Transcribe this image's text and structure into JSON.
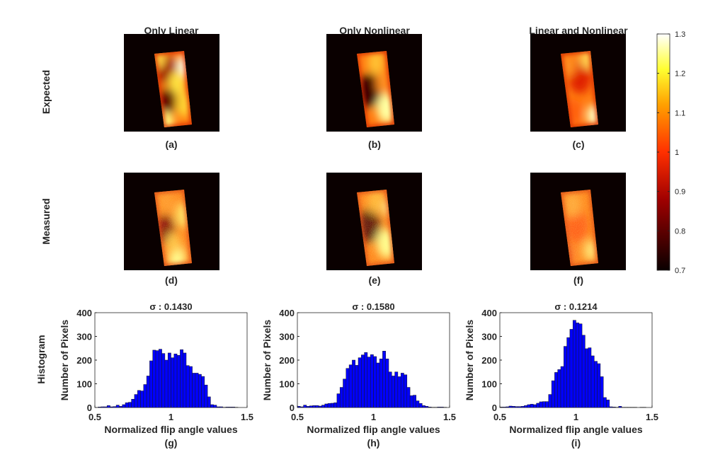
{
  "columns": [
    "Only Linear",
    "Only Nonlinear",
    "Linear and Nonlinear"
  ],
  "rows": [
    "Expected",
    "Measured",
    "Histogram"
  ],
  "panel_labels": [
    "(a)",
    "(b)",
    "(c)",
    "(d)",
    "(e)",
    "(f)",
    "(g)",
    "(h)",
    "(i)"
  ],
  "colorbar": {
    "colormap": "hot",
    "range": [
      0.7,
      1.3
    ],
    "ticks": [
      "0.7",
      "0.8",
      "0.9",
      "1",
      "1.1",
      "1.2",
      "1.3"
    ]
  },
  "chart_data": [
    {
      "type": "bar",
      "panel": "(g)",
      "title": "σ : 0.1430",
      "xlabel": "Normalized flip angle values",
      "ylabel": "Number of Pixels",
      "xlim": [
        0.5,
        1.5
      ],
      "ylim": [
        0,
        400
      ],
      "xticks": [
        "0.5",
        "1",
        "1.5"
      ],
      "yticks": [
        "0",
        "100",
        "200",
        "300",
        "400"
      ],
      "bin_start": 0.5,
      "bin_width": 0.02,
      "color": "#0000ff",
      "values": [
        0,
        2,
        3,
        3,
        8,
        3,
        4,
        10,
        5,
        12,
        20,
        22,
        35,
        55,
        72,
        70,
        97,
        133,
        197,
        242,
        240,
        246,
        228,
        200,
        230,
        210,
        226,
        220,
        244,
        230,
        177,
        173,
        145,
        145,
        140,
        131,
        95,
        45,
        12,
        10,
        3,
        3,
        1,
        2,
        2,
        2,
        1,
        0,
        0,
        0
      ]
    },
    {
      "type": "bar",
      "panel": "(h)",
      "title": "σ : 0.1580",
      "xlabel": "Normalized flip angle values",
      "ylabel": "Number of Pixels",
      "xlim": [
        0.5,
        1.5
      ],
      "ylim": [
        0,
        400
      ],
      "xticks": [
        "0.5",
        "1",
        "1.5"
      ],
      "yticks": [
        "0",
        "100",
        "200",
        "300",
        "400"
      ],
      "bin_start": 0.5,
      "bin_width": 0.02,
      "color": "#0000ff",
      "values": [
        5,
        3,
        10,
        5,
        7,
        8,
        8,
        6,
        10,
        15,
        17,
        18,
        20,
        58,
        85,
        120,
        165,
        180,
        200,
        178,
        210,
        222,
        232,
        213,
        223,
        215,
        188,
        205,
        238,
        205,
        150,
        133,
        150,
        130,
        145,
        138,
        85,
        50,
        52,
        28,
        17,
        8,
        5,
        2,
        1,
        1,
        2,
        2,
        1,
        0
      ]
    },
    {
      "type": "bar",
      "panel": "(i)",
      "title": "σ : 0.1214",
      "xlabel": "Normalized flip angle values",
      "ylabel": "Number of Pixels",
      "xlim": [
        0.5,
        1.5
      ],
      "ylim": [
        0,
        400
      ],
      "xticks": [
        "0.5",
        "1",
        "1.5"
      ],
      "yticks": [
        "0",
        "100",
        "200",
        "300",
        "400"
      ],
      "bin_start": 0.5,
      "bin_width": 0.02,
      "color": "#0000ff",
      "values": [
        2,
        2,
        3,
        6,
        5,
        4,
        4,
        5,
        8,
        12,
        14,
        12,
        18,
        24,
        25,
        25,
        55,
        113,
        148,
        160,
        173,
        258,
        295,
        330,
        368,
        357,
        353,
        305,
        248,
        252,
        218,
        195,
        185,
        130,
        42,
        32,
        3,
        2,
        1,
        5,
        1,
        1,
        1,
        1,
        1,
        0,
        1,
        1,
        0,
        0
      ]
    }
  ]
}
